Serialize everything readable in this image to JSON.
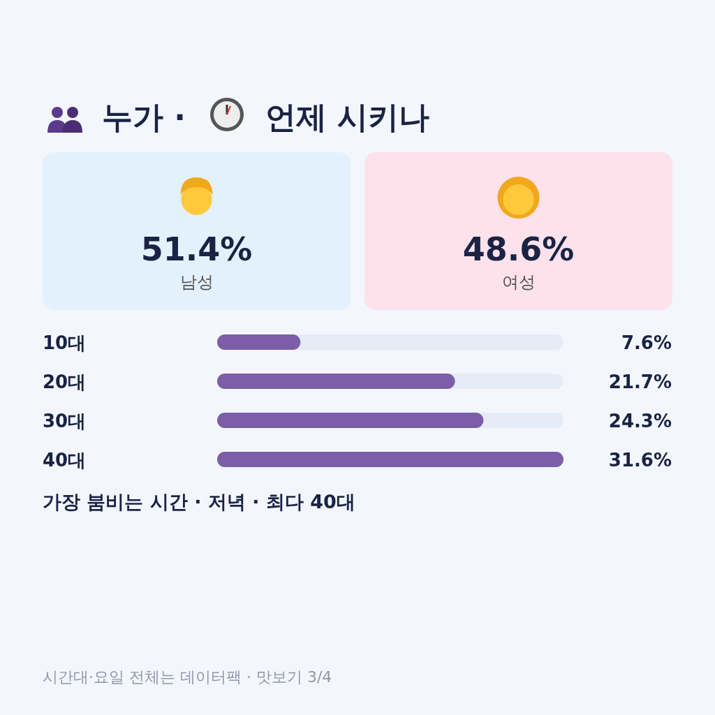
{
  "chart_data": [
    {
      "type": "other",
      "title": "누가 · 언제 시키나",
      "categories": [
        "남성",
        "여성"
      ],
      "colors": [
        "#e3f1fc",
        "#fde2ec"
      ],
      "value_labels": [
        "51.4%",
        "48.6%"
      ]
    },
    {
      "type": "bar",
      "orientation": "horizontal",
      "categories": [
        "10대",
        "20대",
        "30대",
        "40대"
      ],
      "values": [
        7.6,
        21.7,
        24.3,
        31.6
      ],
      "color": "#7b5ea7",
      "value_labels": [
        "7.6%",
        "21.7%",
        "24.3%",
        "31.6%"
      ],
      "annotations": [
        "가장 붐비는 시간 · 저녁 · 최다 40대",
        "시간대·요일 전체는 데이터팩 · 맛보기 3/4"
      ]
    }
  ]
}
